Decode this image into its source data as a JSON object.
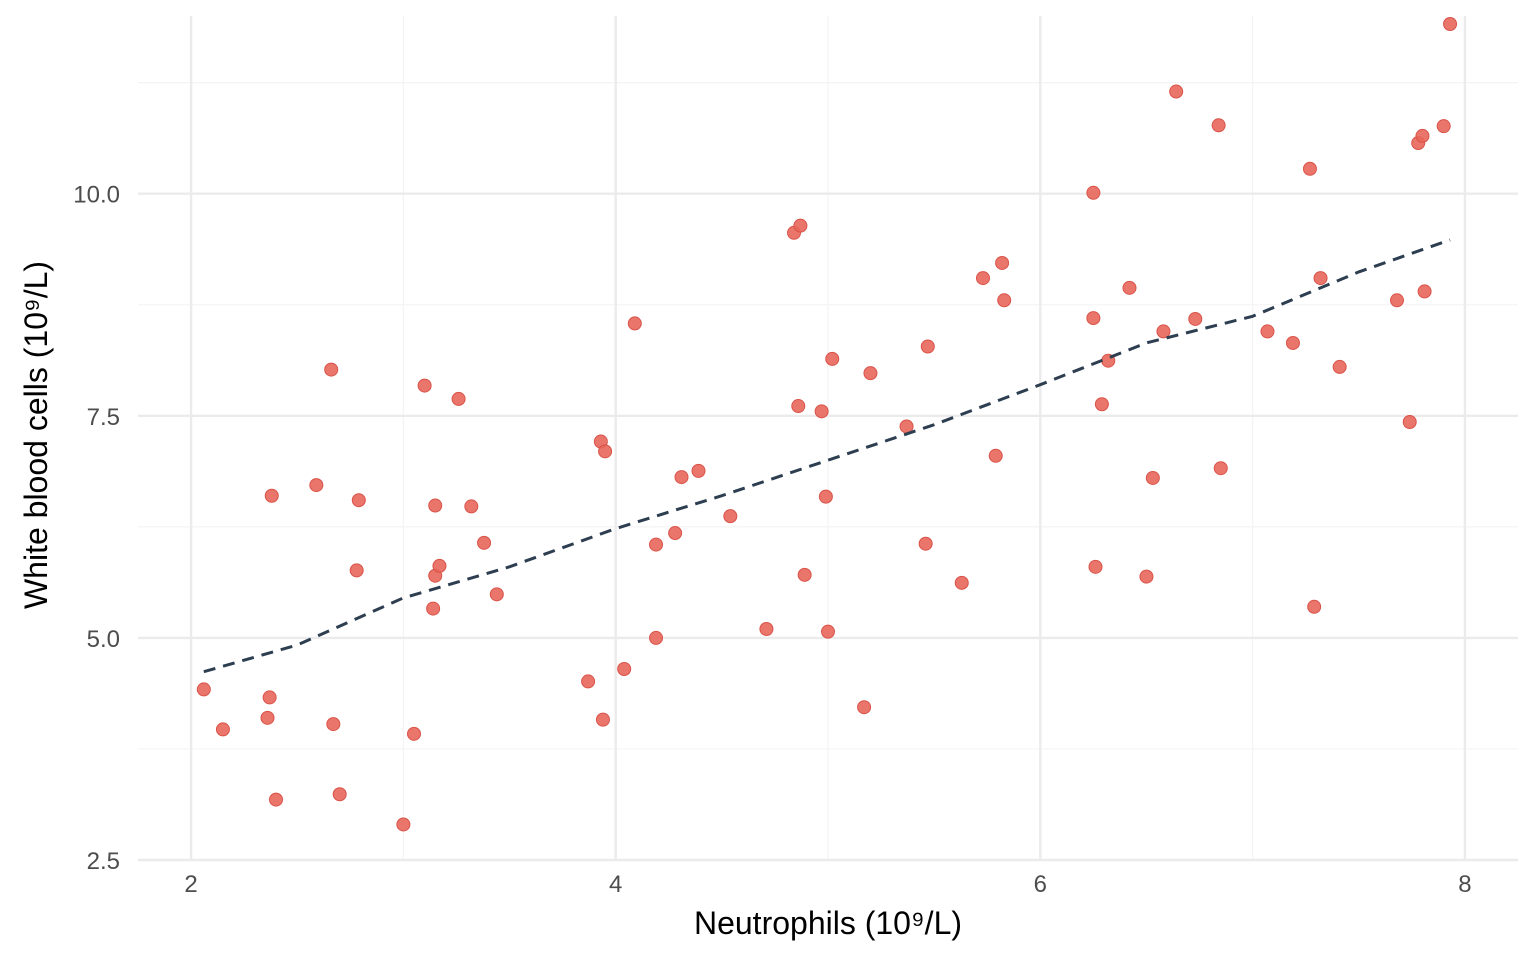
{
  "chart_data": {
    "type": "scatter",
    "title": "",
    "xlabel": "Neutrophils (10⁹/L)",
    "ylabel": "White blood cells (10⁹/L)",
    "xlim": [
      1.75,
      8.25
    ],
    "ylim": [
      2.5,
      12.0
    ],
    "x_ticks": [
      2,
      4,
      6,
      8
    ],
    "x_tick_labels": [
      "2",
      "4",
      "6",
      "8"
    ],
    "y_ticks": [
      2.5,
      5.0,
      7.5,
      10.0
    ],
    "y_tick_labels": [
      "2.5",
      "5.0",
      "7.5",
      "10.0"
    ],
    "grid": true,
    "legend": "none",
    "colors": {
      "points": "#e8665a",
      "point_stroke": "#d9534a",
      "trend": "#2d3e50",
      "grid_major": "#ebebeb",
      "grid_minor": "#f4f4f4"
    },
    "series": [
      {
        "points": [
          [
            2.06,
            4.42
          ],
          [
            2.15,
            3.97
          ],
          [
            2.36,
            4.1
          ],
          [
            2.37,
            4.33
          ],
          [
            2.38,
            6.6
          ],
          [
            2.4,
            3.18
          ],
          [
            2.59,
            6.72
          ],
          [
            2.66,
            8.02
          ],
          [
            2.67,
            4.03
          ],
          [
            2.7,
            3.24
          ],
          [
            2.78,
            5.76
          ],
          [
            2.79,
            6.55
          ],
          [
            3.0,
            2.9
          ],
          [
            3.05,
            3.92
          ],
          [
            3.1,
            7.84
          ],
          [
            3.14,
            5.33
          ],
          [
            3.15,
            5.7
          ],
          [
            3.15,
            6.49
          ],
          [
            3.17,
            5.81
          ],
          [
            3.26,
            7.69
          ],
          [
            3.32,
            6.48
          ],
          [
            3.38,
            6.07
          ],
          [
            3.44,
            5.49
          ],
          [
            3.87,
            4.51
          ],
          [
            3.93,
            7.21
          ],
          [
            3.94,
            4.08
          ],
          [
            3.95,
            7.1
          ],
          [
            4.04,
            4.65
          ],
          [
            4.09,
            8.54
          ],
          [
            4.19,
            6.05
          ],
          [
            4.19,
            5.0
          ],
          [
            4.28,
            6.18
          ],
          [
            4.31,
            6.81
          ],
          [
            4.39,
            6.88
          ],
          [
            4.54,
            6.37
          ],
          [
            4.71,
            5.1
          ],
          [
            4.84,
            9.56
          ],
          [
            4.86,
            7.61
          ],
          [
            4.87,
            9.64
          ],
          [
            4.89,
            5.71
          ],
          [
            4.97,
            7.55
          ],
          [
            4.99,
            6.59
          ],
          [
            5.0,
            5.07
          ],
          [
            5.02,
            8.14
          ],
          [
            5.17,
            4.22
          ],
          [
            5.2,
            7.98
          ],
          [
            5.37,
            7.38
          ],
          [
            5.46,
            6.06
          ],
          [
            5.47,
            8.28
          ],
          [
            5.63,
            5.62
          ],
          [
            5.73,
            9.05
          ],
          [
            5.79,
            7.05
          ],
          [
            5.82,
            9.22
          ],
          [
            5.83,
            8.8
          ],
          [
            6.25,
            10.01
          ],
          [
            6.25,
            8.6
          ],
          [
            6.26,
            5.8
          ],
          [
            6.29,
            7.63
          ],
          [
            6.32,
            8.12
          ],
          [
            6.42,
            8.94
          ],
          [
            6.5,
            5.69
          ],
          [
            6.53,
            6.8
          ],
          [
            6.58,
            8.45
          ],
          [
            6.64,
            11.15
          ],
          [
            6.73,
            8.59
          ],
          [
            6.84,
            10.77
          ],
          [
            6.85,
            6.91
          ],
          [
            7.07,
            8.45
          ],
          [
            7.19,
            8.32
          ],
          [
            7.27,
            10.28
          ],
          [
            7.29,
            5.35
          ],
          [
            7.32,
            9.05
          ],
          [
            7.41,
            8.05
          ],
          [
            7.68,
            8.8
          ],
          [
            7.74,
            7.43
          ],
          [
            7.78,
            10.57
          ],
          [
            7.8,
            10.65
          ],
          [
            7.81,
            8.9
          ],
          [
            7.9,
            10.76
          ],
          [
            7.93,
            11.91
          ]
        ]
      }
    ],
    "trend_line": {
      "style": "dashed",
      "points": [
        [
          2.06,
          4.62
        ],
        [
          2.5,
          4.92
        ],
        [
          3.0,
          5.45
        ],
        [
          3.5,
          5.8
        ],
        [
          4.0,
          6.23
        ],
        [
          4.5,
          6.6
        ],
        [
          5.0,
          7.0
        ],
        [
          5.5,
          7.4
        ],
        [
          6.0,
          7.85
        ],
        [
          6.5,
          8.32
        ],
        [
          7.0,
          8.62
        ],
        [
          7.5,
          9.12
        ],
        [
          7.93,
          9.48
        ]
      ]
    }
  }
}
